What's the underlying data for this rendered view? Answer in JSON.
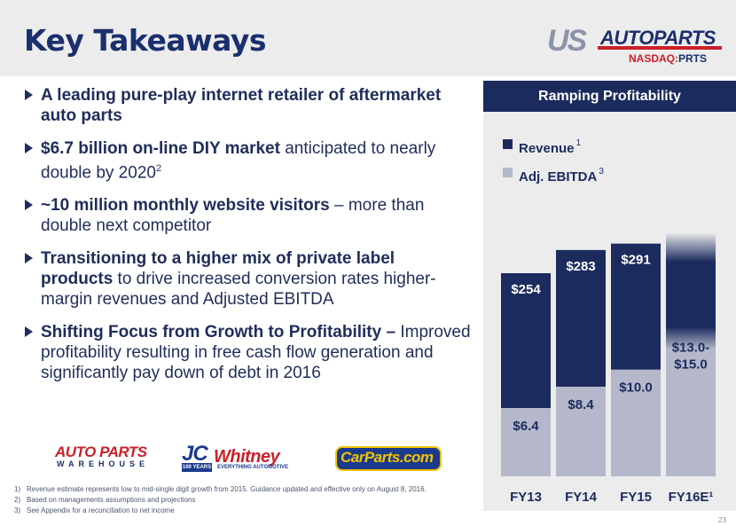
{
  "slide": {
    "title": "Key Takeaways",
    "page_number": "23"
  },
  "logo": {
    "us": "US",
    "autoparts": "AUTOPARTS",
    "exchange": "NASDAQ:",
    "ticker": "PRTS"
  },
  "bullets": [
    {
      "bold": "A leading pure-play internet retailer of aftermarket auto parts",
      "rest": "",
      "sup": ""
    },
    {
      "bold": "$6.7 billion on-line DIY market",
      "rest": " anticipated to nearly double by 2020",
      "sup": "2"
    },
    {
      "bold": "~10 million monthly website visitors",
      "rest": " – more than double next competitor",
      "sup": ""
    },
    {
      "bold": "Transitioning to a higher mix of private label products",
      "rest": " to drive increased conversion rates higher-margin revenues and Adjusted EBITDA",
      "sup": ""
    },
    {
      "bold": "Shifting Focus from Growth to Profitability –",
      "rest": " Improved profitability resulting in free cash flow generation and significantly pay down of debt in 2016",
      "sup": ""
    }
  ],
  "brands": {
    "apw_top": "AUTO PARTS",
    "apw_bottom": "WAREHOUSE",
    "jc": "JC",
    "jc_years": "100 YEARS",
    "whitney": "Whitney",
    "jc_tagline": "EVERYTHING AUTOMOTIVE",
    "carparts": "CarParts.com"
  },
  "footnotes": [
    {
      "num": "1)",
      "text": "Revenue estimate represents low to mid-single digit growth from 2015. Guidance updated and effective only on August 8, 2016."
    },
    {
      "num": "2)",
      "text": "Based on managements assumptions and projections"
    },
    {
      "num": "3)",
      "text": "See Appendix for a reconciliation to net income"
    }
  ],
  "colors": {
    "revenue": "#1b2b5e",
    "ebitda": "#b4b8ca",
    "panel": "#ececec",
    "title": "#1b2f6e",
    "accent_red": "#cc1f26"
  },
  "chart_data": {
    "type": "bar",
    "title": "Ramping Profitability",
    "categories": [
      "FY13",
      "FY14",
      "FY15",
      "FY16E¹"
    ],
    "series": [
      {
        "name": "Revenue",
        "sup": "1",
        "values": [
          254,
          283,
          291,
          305
        ],
        "labels": [
          "$254",
          "$283",
          "$291",
          ""
        ]
      },
      {
        "name": "Adj. EBITDA",
        "sup": "3",
        "values": [
          6.4,
          8.4,
          10.0,
          14.0
        ],
        "labels": [
          "$6.4",
          "$8.4",
          "$10.0",
          "$13.0-\n$15.0"
        ]
      }
    ],
    "legend_position": "top-left",
    "grid": false,
    "overlay": true,
    "note": "FY16E revenue bar shown with gradient fade above; EBITDA range $13.0-$15.0"
  }
}
